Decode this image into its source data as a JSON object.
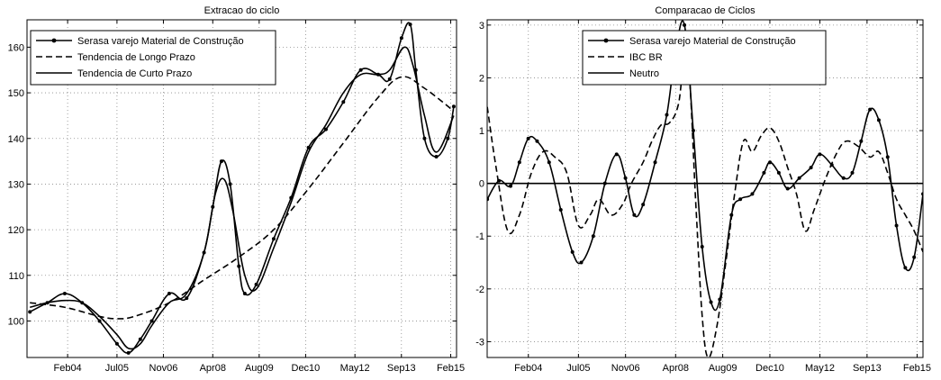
{
  "chart_data": [
    {
      "type": "line",
      "title": "Extracao do ciclo",
      "x_tick_labels": [
        "Feb04",
        "Jul05",
        "Nov06",
        "Apr08",
        "Aug09",
        "Dec10",
        "May12",
        "Sep13",
        "Feb15"
      ],
      "x_tick_values": [
        2004.083,
        2005.5,
        2006.833,
        2008.25,
        2009.583,
        2010.917,
        2012.333,
        2013.667,
        2015.083
      ],
      "xlim": [
        2002.917,
        2015.25
      ],
      "ylim": [
        92,
        166
      ],
      "y_tick_values": [
        100,
        110,
        120,
        130,
        140,
        150,
        160
      ],
      "grid": true,
      "legend_position": "top-left",
      "series": [
        {
          "name": "Serasa varejo Material de Construção",
          "style": "solid-dot",
          "points": [
            [
              2003.0,
              102
            ],
            [
              2003.5,
              104
            ],
            [
              2004.0,
              106
            ],
            [
              2004.5,
              104
            ],
            [
              2005.0,
              100
            ],
            [
              2005.5,
              95
            ],
            [
              2005.83,
              93
            ],
            [
              2006.17,
              96
            ],
            [
              2006.5,
              100
            ],
            [
              2007.0,
              106
            ],
            [
              2007.5,
              105
            ],
            [
              2008.0,
              115
            ],
            [
              2008.25,
              125
            ],
            [
              2008.5,
              135
            ],
            [
              2008.75,
              130
            ],
            [
              2009.0,
              112
            ],
            [
              2009.17,
              106
            ],
            [
              2009.5,
              108
            ],
            [
              2010.0,
              118
            ],
            [
              2010.5,
              127
            ],
            [
              2011.0,
              138
            ],
            [
              2011.5,
              142
            ],
            [
              2012.0,
              148
            ],
            [
              2012.5,
              155
            ],
            [
              2013.0,
              154
            ],
            [
              2013.33,
              153
            ],
            [
              2013.67,
              162
            ],
            [
              2013.92,
              165
            ],
            [
              2014.08,
              155
            ],
            [
              2014.33,
              140
            ],
            [
              2014.67,
              136
            ],
            [
              2015.0,
              140
            ],
            [
              2015.17,
              147
            ]
          ]
        },
        {
          "name": "Tendencia de Longo Prazo",
          "style": "dashed",
          "points": [
            [
              2003.0,
              104
            ],
            [
              2004.0,
              103
            ],
            [
              2005.0,
              101
            ],
            [
              2005.5,
              100.5
            ],
            [
              2006.0,
              101
            ],
            [
              2007.0,
              104
            ],
            [
              2008.0,
              109
            ],
            [
              2009.0,
              114
            ],
            [
              2010.0,
              120
            ],
            [
              2011.0,
              129
            ],
            [
              2012.0,
              139
            ],
            [
              2013.0,
              149
            ],
            [
              2013.67,
              153.5
            ],
            [
              2014.33,
              151
            ],
            [
              2015.17,
              146
            ]
          ]
        },
        {
          "name": "Tendencia de Curto Prazo",
          "style": "solid",
          "points": [
            [
              2003.0,
              103
            ],
            [
              2003.5,
              104
            ],
            [
              2004.0,
              104.5
            ],
            [
              2004.5,
              104
            ],
            [
              2005.0,
              101
            ],
            [
              2005.5,
              97
            ],
            [
              2005.83,
              94
            ],
            [
              2006.17,
              95
            ],
            [
              2006.5,
              99
            ],
            [
              2007.0,
              104
            ],
            [
              2007.5,
              106
            ],
            [
              2008.0,
              115
            ],
            [
              2008.33,
              128
            ],
            [
              2008.58,
              131
            ],
            [
              2008.83,
              124
            ],
            [
              2009.17,
              110
            ],
            [
              2009.5,
              107
            ],
            [
              2010.0,
              116
            ],
            [
              2010.5,
              126
            ],
            [
              2011.0,
              137
            ],
            [
              2011.5,
              143
            ],
            [
              2012.0,
              150
            ],
            [
              2012.5,
              154
            ],
            [
              2013.0,
              154
            ],
            [
              2013.33,
              155
            ],
            [
              2013.75,
              160
            ],
            [
              2014.0,
              156
            ],
            [
              2014.33,
              145
            ],
            [
              2014.67,
              137
            ],
            [
              2015.17,
              145
            ]
          ]
        }
      ]
    },
    {
      "type": "line",
      "title": "Comparacao de Ciclos",
      "x_tick_labels": [
        "Feb04",
        "Jul05",
        "Nov06",
        "Apr08",
        "Aug09",
        "Dec10",
        "May12",
        "Sep13",
        "Feb15"
      ],
      "x_tick_values": [
        2004.083,
        2005.5,
        2006.833,
        2008.25,
        2009.583,
        2010.917,
        2012.333,
        2013.667,
        2015.083
      ],
      "xlim": [
        2002.917,
        2015.25
      ],
      "ylim": [
        -3.3,
        3.1
      ],
      "y_tick_values": [
        -3,
        -2,
        -1,
        0,
        1,
        2,
        3
      ],
      "grid": true,
      "legend_position": "top-center",
      "series": [
        {
          "name": "Serasa varejo Material de Construção",
          "style": "solid-dot",
          "points": [
            [
              2002.92,
              -0.3
            ],
            [
              2003.25,
              0.05
            ],
            [
              2003.58,
              -0.05
            ],
            [
              2003.83,
              0.4
            ],
            [
              2004.08,
              0.85
            ],
            [
              2004.33,
              0.8
            ],
            [
              2004.67,
              0.4
            ],
            [
              2005.0,
              -0.5
            ],
            [
              2005.33,
              -1.3
            ],
            [
              2005.58,
              -1.5
            ],
            [
              2005.92,
              -1.0
            ],
            [
              2006.25,
              0.0
            ],
            [
              2006.58,
              0.55
            ],
            [
              2006.83,
              0.1
            ],
            [
              2007.08,
              -0.6
            ],
            [
              2007.33,
              -0.4
            ],
            [
              2007.67,
              0.4
            ],
            [
              2008.0,
              1.3
            ],
            [
              2008.25,
              2.5
            ],
            [
              2008.5,
              3.0
            ],
            [
              2008.75,
              1.0
            ],
            [
              2009.0,
              -1.2
            ],
            [
              2009.25,
              -2.25
            ],
            [
              2009.5,
              -2.2
            ],
            [
              2009.83,
              -0.6
            ],
            [
              2010.08,
              -0.3
            ],
            [
              2010.42,
              -0.2
            ],
            [
              2010.75,
              0.2
            ],
            [
              2010.92,
              0.4
            ],
            [
              2011.17,
              0.2
            ],
            [
              2011.42,
              -0.1
            ],
            [
              2011.75,
              0.1
            ],
            [
              2012.08,
              0.3
            ],
            [
              2012.33,
              0.55
            ],
            [
              2012.67,
              0.35
            ],
            [
              2013.0,
              0.1
            ],
            [
              2013.25,
              0.2
            ],
            [
              2013.5,
              0.8
            ],
            [
              2013.75,
              1.4
            ],
            [
              2014.0,
              1.2
            ],
            [
              2014.25,
              0.5
            ],
            [
              2014.5,
              -0.8
            ],
            [
              2014.75,
              -1.6
            ],
            [
              2015.0,
              -1.4
            ],
            [
              2015.25,
              -0.2
            ]
          ]
        },
        {
          "name": "IBC BR",
          "style": "dashed",
          "points": [
            [
              2002.92,
              1.45
            ],
            [
              2003.17,
              0.3
            ],
            [
              2003.5,
              -0.9
            ],
            [
              2003.83,
              -0.6
            ],
            [
              2004.17,
              0.2
            ],
            [
              2004.5,
              0.6
            ],
            [
              2004.83,
              0.5
            ],
            [
              2005.17,
              0.2
            ],
            [
              2005.5,
              -0.8
            ],
            [
              2005.83,
              -0.6
            ],
            [
              2006.08,
              -0.3
            ],
            [
              2006.42,
              -0.6
            ],
            [
              2006.75,
              -0.4
            ],
            [
              2007.0,
              0.0
            ],
            [
              2007.33,
              0.4
            ],
            [
              2007.58,
              0.8
            ],
            [
              2007.83,
              1.1
            ],
            [
              2008.08,
              1.15
            ],
            [
              2008.33,
              1.5
            ],
            [
              2008.58,
              2.5
            ],
            [
              2008.83,
              -0.5
            ],
            [
              2009.0,
              -2.5
            ],
            [
              2009.17,
              -3.3
            ],
            [
              2009.42,
              -2.7
            ],
            [
              2009.67,
              -1.5
            ],
            [
              2009.92,
              -0.2
            ],
            [
              2010.17,
              0.8
            ],
            [
              2010.42,
              0.6
            ],
            [
              2010.67,
              0.9
            ],
            [
              2010.92,
              1.05
            ],
            [
              2011.17,
              0.8
            ],
            [
              2011.42,
              0.3
            ],
            [
              2011.67,
              -0.2
            ],
            [
              2011.92,
              -0.9
            ],
            [
              2012.17,
              -0.5
            ],
            [
              2012.5,
              0.1
            ],
            [
              2012.83,
              0.6
            ],
            [
              2013.08,
              0.8
            ],
            [
              2013.42,
              0.7
            ],
            [
              2013.75,
              0.5
            ],
            [
              2014.0,
              0.6
            ],
            [
              2014.25,
              0.2
            ],
            [
              2014.5,
              -0.3
            ],
            [
              2014.75,
              -0.6
            ],
            [
              2015.0,
              -0.9
            ],
            [
              2015.25,
              -1.3
            ]
          ]
        },
        {
          "name": "Neutro",
          "style": "solid",
          "points": [
            [
              2002.92,
              0
            ],
            [
              2015.25,
              0
            ]
          ]
        }
      ]
    }
  ]
}
